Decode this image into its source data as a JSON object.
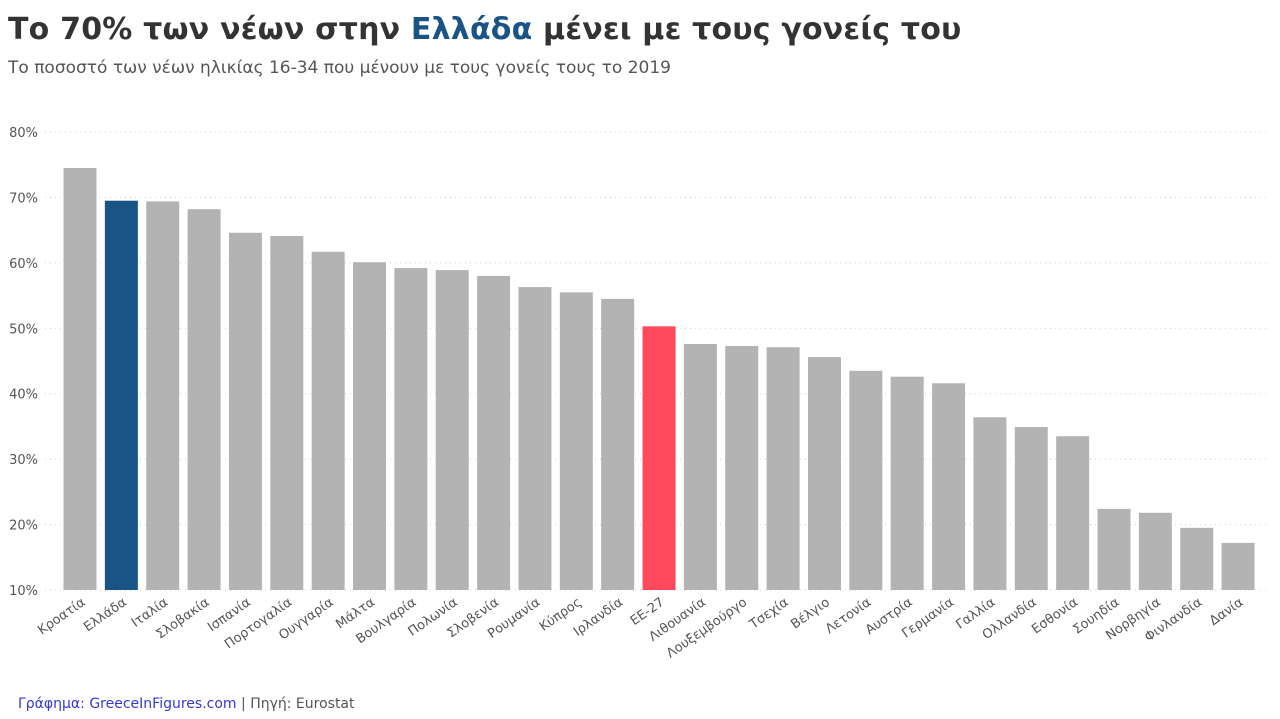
{
  "title": {
    "before": "Το 70% των νέων στην ",
    "highlight": "Ελλάδα",
    "after": " μένει με τους γονείς του"
  },
  "subtitle": "Το ποσοστό των νέων ηλικίας 16-34 που μένουν με τους γονείς τους το 2019",
  "footer": {
    "brand": "Γράφημα: GreeceInFigures.com",
    "separator": " | ",
    "source": "Πηγή: Eurostat"
  },
  "colors": {
    "default": "#b3b3b3",
    "greece": "#1a5386",
    "eu": "#ff4a5e"
  },
  "chart_data": {
    "type": "bar",
    "ylim": [
      10,
      80
    ],
    "yticks": [
      "10%",
      "20%",
      "30%",
      "40%",
      "50%",
      "60%",
      "70%",
      "80%"
    ],
    "grid": true,
    "categories": [
      "Κροατία",
      "Ελλάδα",
      "Ιταλία",
      "Σλοβακία",
      "Ισπανία",
      "Πορτογαλία",
      "Ουγγαρία",
      "Μάλτα",
      "Βουλγαρία",
      "Πολωνία",
      "Σλοβενία",
      "Ρουμανία",
      "Κύπρος",
      "Ιρλανδία",
      "ΕΕ-27",
      "Λιθουανία",
      "Λουξεμβούργο",
      "Τσεχία",
      "Βέλγιο",
      "Λετονία",
      "Αυστρία",
      "Γερμανία",
      "Γαλλία",
      "Ολλανδία",
      "Εσθονία",
      "Σουηδία",
      "Νορβηγία",
      "Φινλανδία",
      "Δανία"
    ],
    "values": [
      74.5,
      69.5,
      69.4,
      68.2,
      64.6,
      64.1,
      61.7,
      60.1,
      59.2,
      58.9,
      58.0,
      56.3,
      55.5,
      54.5,
      50.3,
      47.6,
      47.3,
      47.1,
      45.6,
      43.5,
      42.6,
      41.6,
      36.4,
      34.9,
      33.5,
      22.4,
      21.8,
      19.5,
      17.2
    ],
    "highlight": {
      "Ελλάδα": "greece",
      "ΕΕ-27": "eu"
    }
  }
}
